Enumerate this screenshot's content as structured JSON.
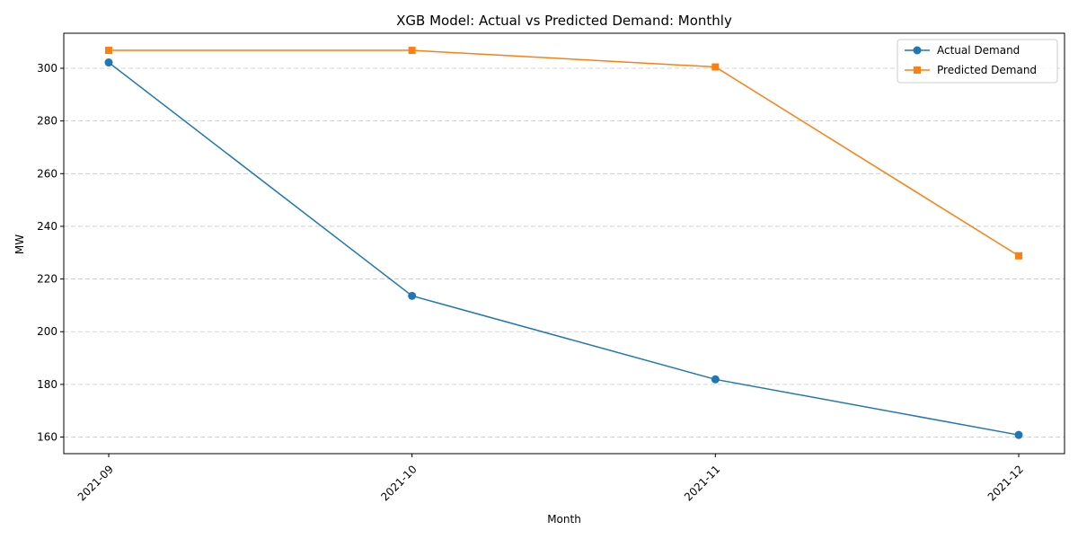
{
  "chart_data": {
    "type": "line",
    "title": "XGB Model: Actual vs Predicted Demand: Monthly",
    "xlabel": "Month",
    "ylabel": "MW",
    "categories": [
      "2021-09",
      "2021-10",
      "2021-11",
      "2021-12"
    ],
    "ylim": [
      153.7,
      313.3
    ],
    "yticks": [
      160,
      180,
      200,
      220,
      240,
      260,
      280,
      300
    ],
    "grid": "y-dashed",
    "legend_position": "top-right",
    "series": [
      {
        "name": "Actual Demand",
        "values": [
          302.2,
          213.6,
          181.9,
          160.8
        ],
        "color": "#1f77b4",
        "marker": "circle"
      },
      {
        "name": "Predicted Demand",
        "values": [
          306.8,
          306.8,
          300.5,
          228.8
        ],
        "color": "#ff7f0e",
        "marker": "square"
      }
    ]
  }
}
